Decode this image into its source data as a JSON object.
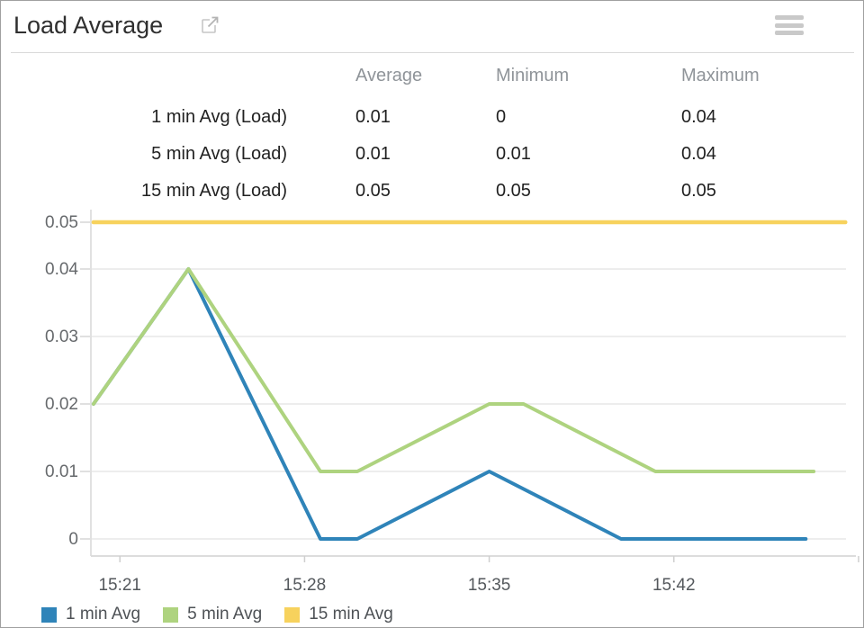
{
  "header": {
    "title": "Load Average",
    "external_link_icon": "external-link-icon",
    "menu_icon": "hamburger-menu-icon"
  },
  "stats_table": {
    "columns": [
      "Average",
      "Minimum",
      "Maximum"
    ],
    "rows": [
      {
        "label": "1 min Avg (Load)",
        "average": "0.01",
        "minimum": "0",
        "maximum": "0.04"
      },
      {
        "label": "5 min Avg (Load)",
        "average": "0.01",
        "minimum": "0.01",
        "maximum": "0.04"
      },
      {
        "label": "15 min Avg (Load)",
        "average": "0.05",
        "minimum": "0.05",
        "maximum": "0.05"
      }
    ]
  },
  "chart_data": {
    "type": "line",
    "title": "Load Average",
    "ylim": [
      0,
      0.05
    ],
    "xlim_minutes_after_1500": [
      19.9,
      48.9
    ],
    "grid": "horizontal",
    "legend_position": "bottom-left",
    "y_ticks": [
      {
        "value": 0,
        "label": "0"
      },
      {
        "value": 0.01,
        "label": "0.01"
      },
      {
        "value": 0.02,
        "label": "0.02"
      },
      {
        "value": 0.03,
        "label": "0.03"
      },
      {
        "value": 0.04,
        "label": "0.04"
      },
      {
        "value": 0.05,
        "label": "0.05"
      }
    ],
    "x_ticks": [
      {
        "minutes_after_1500": 21,
        "label": "15:21"
      },
      {
        "minutes_after_1500": 28,
        "label": "15:28"
      },
      {
        "minutes_after_1500": 35,
        "label": "15:35"
      },
      {
        "minutes_after_1500": 42,
        "label": "15:42"
      },
      {
        "minutes_after_1500": 49,
        "label": ""
      }
    ],
    "series": [
      {
        "name": "1 min Avg",
        "color": "#2f84b9",
        "points_minutes_value": [
          [
            20,
            0.02
          ],
          [
            23.6,
            0.04
          ],
          [
            28.6,
            0
          ],
          [
            30,
            0
          ],
          [
            35,
            0.01
          ],
          [
            40,
            0
          ],
          [
            47,
            0
          ]
        ]
      },
      {
        "name": "5 min Avg",
        "color": "#aed37f",
        "points_minutes_value": [
          [
            20,
            0.02
          ],
          [
            23.6,
            0.04
          ],
          [
            28.6,
            0.01
          ],
          [
            30,
            0.01
          ],
          [
            35,
            0.02
          ],
          [
            36.3,
            0.02
          ],
          [
            41.3,
            0.01
          ],
          [
            47.3,
            0.01
          ]
        ]
      },
      {
        "name": "15 min Avg",
        "color": "#f7d25d",
        "points_minutes_value": [
          [
            20,
            0.05
          ],
          [
            48.5,
            0.05
          ]
        ]
      }
    ]
  }
}
